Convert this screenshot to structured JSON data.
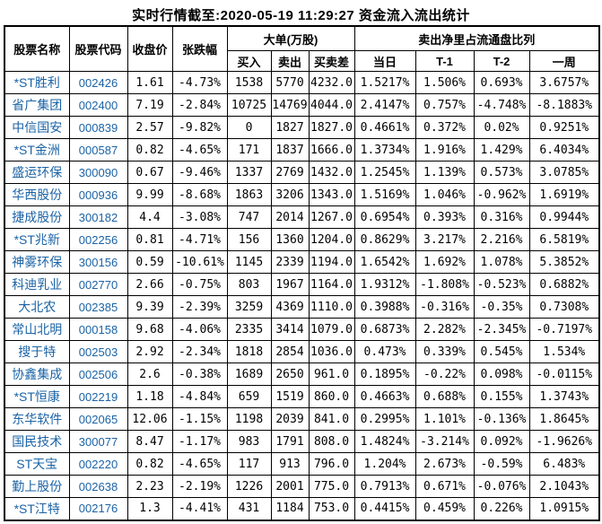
{
  "title": "实时行情截至:2020-05-19 11:29:27 资金流入流出统计",
  "colors": {
    "link_blue": "#1b63a5",
    "border": "#000000",
    "text": "#000000",
    "background": "#ffffff"
  },
  "chart_data": {
    "type": "table",
    "title": "实时行情截至:2020-05-19 11:29:27 资金流入流出统计",
    "columns": {
      "name": "股票名称",
      "code": "股票代码",
      "close": "收盘价",
      "change": "张跌幅",
      "big_orders_group": "大单(万股)",
      "buy": "买入",
      "sell": "卖出",
      "diff": "买卖差",
      "ratio_group": "卖出净里占流通盘比列",
      "day": "当日",
      "t1": "T-1",
      "t2": "T-2",
      "week": "一周"
    },
    "rows": [
      [
        "*ST胜利",
        "002426",
        "1.61",
        "-4.73%",
        "1538",
        "5770",
        "4232.0",
        "1.5217%",
        "1.506%",
        "0.693%",
        "3.6757%"
      ],
      [
        "省广集团",
        "002400",
        "7.19",
        "-2.84%",
        "10725",
        "14769",
        "4044.0",
        "2.4147%",
        "0.757%",
        "-4.748%",
        "-8.1883%"
      ],
      [
        "中信国安",
        "000839",
        "2.57",
        "-9.82%",
        "0",
        "1827",
        "1827.0",
        "0.4661%",
        "0.372%",
        "0.02%",
        "0.9251%"
      ],
      [
        "*ST金洲",
        "000587",
        "0.82",
        "-4.65%",
        "171",
        "1837",
        "1666.0",
        "1.3734%",
        "1.916%",
        "1.429%",
        "6.4034%"
      ],
      [
        "盛运环保",
        "300090",
        "0.67",
        "-9.46%",
        "1337",
        "2769",
        "1432.0",
        "1.2545%",
        "1.139%",
        "0.573%",
        "3.0785%"
      ],
      [
        "华西股份",
        "000936",
        "9.99",
        "-8.68%",
        "1863",
        "3206",
        "1343.0",
        "1.5169%",
        "1.046%",
        "-0.962%",
        "1.6919%"
      ],
      [
        "捷成股份",
        "300182",
        "4.4",
        "-3.08%",
        "747",
        "2014",
        "1267.0",
        "0.6954%",
        "0.393%",
        "0.316%",
        "0.9944%"
      ],
      [
        "*ST兆新",
        "002256",
        "0.81",
        "-4.71%",
        "156",
        "1360",
        "1204.0",
        "0.8629%",
        "3.217%",
        "2.216%",
        "6.5819%"
      ],
      [
        "神雾环保",
        "300156",
        "0.59",
        "-10.61%",
        "1145",
        "2339",
        "1194.0",
        "1.6542%",
        "1.692%",
        "1.078%",
        "5.3852%"
      ],
      [
        "科迪乳业",
        "002770",
        "2.66",
        "-0.75%",
        "803",
        "1967",
        "1164.0",
        "1.9312%",
        "-1.808%",
        "-0.523%",
        "0.6882%"
      ],
      [
        "大北农",
        "002385",
        "9.39",
        "-2.39%",
        "3259",
        "4369",
        "1110.0",
        "0.3988%",
        "-0.316%",
        "-0.35%",
        "0.7308%"
      ],
      [
        "常山北明",
        "000158",
        "9.68",
        "-4.06%",
        "2335",
        "3414",
        "1079.0",
        "0.6873%",
        "2.282%",
        "-2.345%",
        "-0.7197%"
      ],
      [
        "搜于特",
        "002503",
        "2.92",
        "-2.34%",
        "1818",
        "2854",
        "1036.0",
        "0.473%",
        "0.339%",
        "0.545%",
        "1.534%"
      ],
      [
        "协鑫集成",
        "002506",
        "2.6",
        "-0.38%",
        "1689",
        "2650",
        "961.0",
        "0.1895%",
        "-0.22%",
        "0.098%",
        "-0.0115%"
      ],
      [
        "*ST恒康",
        "002219",
        "1.18",
        "-4.84%",
        "659",
        "1519",
        "860.0",
        "0.4663%",
        "0.688%",
        "0.155%",
        "1.3743%"
      ],
      [
        "东华软件",
        "002065",
        "12.06",
        "-1.15%",
        "1198",
        "2039",
        "841.0",
        "0.2995%",
        "1.101%",
        "-0.136%",
        "1.8645%"
      ],
      [
        "国民技术",
        "300077",
        "8.47",
        "-1.17%",
        "983",
        "1791",
        "808.0",
        "1.4824%",
        "-3.214%",
        "0.092%",
        "-1.9626%"
      ],
      [
        "ST天宝",
        "002220",
        "0.82",
        "-4.65%",
        "117",
        "913",
        "796.0",
        "1.204%",
        "2.673%",
        "-0.59%",
        "6.483%"
      ],
      [
        "勤上股份",
        "002638",
        "2.23",
        "-2.19%",
        "1226",
        "2001",
        "775.0",
        "0.7913%",
        "0.671%",
        "-0.076%",
        "2.1043%"
      ],
      [
        "*ST江特",
        "002176",
        "1.3",
        "-4.41%",
        "431",
        "1184",
        "753.0",
        "0.4415%",
        "0.459%",
        "0.226%",
        "1.0915%"
      ]
    ]
  }
}
